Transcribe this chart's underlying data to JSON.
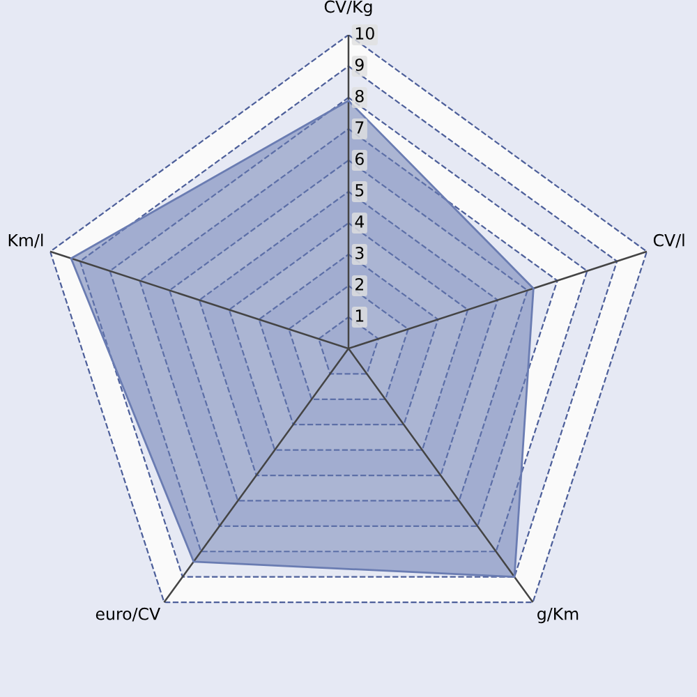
{
  "chart_data": {
    "type": "radar",
    "categories": [
      "CV/Kg",
      "CV/l",
      "g/Km",
      "euro/CV",
      "Km/l"
    ],
    "series": [
      {
        "color": "#6a7cb2",
        "values": [
          7.9,
          6.2,
          9.0,
          8.4,
          9.3
        ]
      }
    ],
    "ylim": [
      0,
      10
    ],
    "yticks": [
      1,
      2,
      3,
      4,
      5,
      6,
      7,
      8,
      9,
      10
    ],
    "grid": true
  }
}
